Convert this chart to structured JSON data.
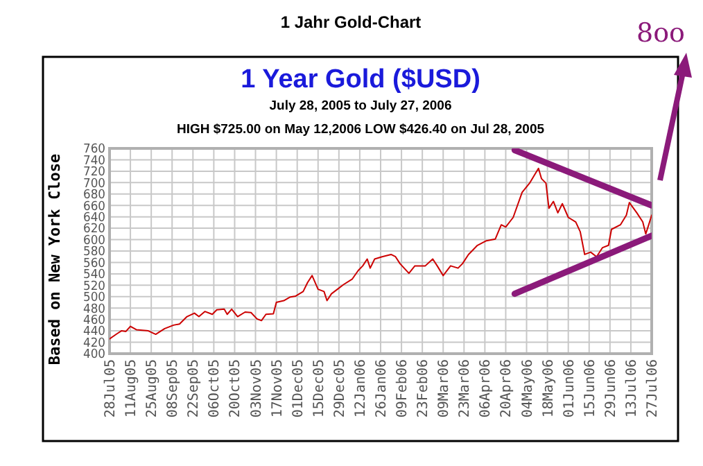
{
  "chart_data": {
    "type": "line",
    "title": "1 Jahr Gold-Chart",
    "subtitle": "1 Year Gold ($USD)",
    "ylabel": "Based on New York Close",
    "annotations": [
      "July 28, 2005 to July 27, 2006",
      "HIGH $725.00 on May 12,2006 LOW $426.40 on Jul 28, 2005",
      "8oo"
    ],
    "x": [
      "2005-07-28",
      "2005-08-02",
      "2005-08-05",
      "2005-08-08",
      "2005-08-11",
      "2005-08-15",
      "2005-08-23",
      "2005-08-28",
      "2005-09-03",
      "2005-09-09",
      "2005-09-13",
      "2005-09-18",
      "2005-09-23",
      "2005-09-26",
      "2005-09-30",
      "2005-10-05",
      "2005-10-08",
      "2005-10-13",
      "2005-10-15",
      "2005-10-18",
      "2005-10-22",
      "2005-10-27",
      "2005-10-31",
      "2005-11-04",
      "2005-11-07",
      "2005-11-10",
      "2005-11-15",
      "2005-11-17",
      "2005-11-22",
      "2005-11-26",
      "2005-11-30",
      "2005-12-05",
      "2005-12-08",
      "2005-12-11",
      "2005-12-15",
      "2005-12-19",
      "2005-12-21",
      "2005-12-24",
      "2005-12-28",
      "2006-01-01",
      "2006-01-07",
      "2006-01-11",
      "2006-01-14",
      "2006-01-17",
      "2006-01-19",
      "2006-01-22",
      "2006-01-27",
      "2006-02-02",
      "2006-02-05",
      "2006-02-08",
      "2006-02-14",
      "2006-02-18",
      "2006-02-25",
      "2006-03-02",
      "2006-03-05",
      "2006-03-09",
      "2006-03-14",
      "2006-03-19",
      "2006-03-22",
      "2006-03-26",
      "2006-04-01",
      "2006-04-07",
      "2006-04-13",
      "2006-04-17",
      "2006-04-20",
      "2006-04-25",
      "2006-05-01",
      "2006-05-06",
      "2006-05-12",
      "2006-05-14",
      "2006-05-17",
      "2006-05-19",
      "2006-05-22",
      "2006-05-25",
      "2006-05-28",
      "2006-06-01",
      "2006-06-06",
      "2006-06-09",
      "2006-06-12",
      "2006-06-16",
      "2006-06-20",
      "2006-06-24",
      "2006-06-28",
      "2006-06-30",
      "2006-07-06",
      "2006-07-10",
      "2006-07-12",
      "2006-07-17",
      "2006-07-21",
      "2006-07-23",
      "2006-07-25",
      "2006-07-27"
    ],
    "series": [
      {
        "color": "#cc0000",
        "values": [
          426,
          435,
          440,
          439,
          448,
          442,
          440,
          434,
          444,
          450,
          452,
          465,
          471,
          465,
          474,
          469,
          477,
          478,
          469,
          478,
          465,
          473,
          472,
          461,
          458,
          469,
          470,
          490,
          493,
          499,
          501,
          509,
          525,
          537,
          513,
          509,
          493,
          505,
          513,
          521,
          531,
          546,
          554,
          566,
          550,
          566,
          570,
          574,
          570,
          558,
          541,
          554,
          554,
          566,
          554,
          537,
          554,
          550,
          558,
          574,
          590,
          598,
          601,
          626,
          622,
          639,
          683,
          699,
          725,
          707,
          699,
          655,
          667,
          647,
          663,
          639,
          631,
          614,
          574,
          578,
          570,
          586,
          590,
          618,
          626,
          643,
          665,
          647,
          631,
          610,
          626,
          643
        ]
      },
      {
        "type": "line",
        "color": "#8b1a7a",
        "x": [
          "2006-04-26",
          "2006-07-27"
        ],
        "values": [
          757,
          660
        ]
      },
      {
        "type": "line",
        "color": "#8b1a7a",
        "x": [
          "2006-04-26",
          "2006-07-27"
        ],
        "values": [
          505,
          607
        ]
      }
    ],
    "xlim": [
      "2005-07-28",
      "2006-07-27"
    ],
    "xticks": [
      {
        "value": "2005-07-28",
        "label": "28Jul05"
      },
      {
        "value": "2005-08-11",
        "label": "11Aug05"
      },
      {
        "value": "2005-08-25",
        "label": "25Aug05"
      },
      {
        "value": "2005-09-08",
        "label": "08Sep05"
      },
      {
        "value": "2005-09-22",
        "label": "22Sep05"
      },
      {
        "value": "2005-10-06",
        "label": "06Oct05"
      },
      {
        "value": "2005-10-20",
        "label": "20Oct05"
      },
      {
        "value": "2005-11-03",
        "label": "03Nov05"
      },
      {
        "value": "2005-11-17",
        "label": "17Nov05"
      },
      {
        "value": "2005-12-01",
        "label": "01Dec05"
      },
      {
        "value": "2005-12-15",
        "label": "15Dec05"
      },
      {
        "value": "2005-12-29",
        "label": "29Dec05"
      },
      {
        "value": "2006-01-12",
        "label": "12Jan06"
      },
      {
        "value": "2006-01-26",
        "label": "26Jan06"
      },
      {
        "value": "2006-02-09",
        "label": "09Feb06"
      },
      {
        "value": "2006-02-23",
        "label": "23Feb06"
      },
      {
        "value": "2006-03-09",
        "label": "09Mar06"
      },
      {
        "value": "2006-03-23",
        "label": "23Mar06"
      },
      {
        "value": "2006-04-06",
        "label": "06Apr06"
      },
      {
        "value": "2006-04-20",
        "label": "20Apr06"
      },
      {
        "value": "2006-05-04",
        "label": "04May06"
      },
      {
        "value": "2006-05-18",
        "label": "18May06"
      },
      {
        "value": "2006-06-01",
        "label": "01Jun06"
      },
      {
        "value": "2006-06-15",
        "label": "15Jun06"
      },
      {
        "value": "2006-06-29",
        "label": "29Jun06"
      },
      {
        "value": "2006-07-13",
        "label": "13Jul06"
      },
      {
        "value": "2006-07-27",
        "label": "27Jul06"
      }
    ],
    "ylim": [
      400,
      760
    ],
    "yticks": [
      400,
      420,
      440,
      460,
      480,
      500,
      520,
      540,
      560,
      580,
      600,
      620,
      640,
      660,
      680,
      700,
      720,
      740,
      760
    ],
    "grid": true,
    "marker": "none",
    "line_style": "solid"
  }
}
